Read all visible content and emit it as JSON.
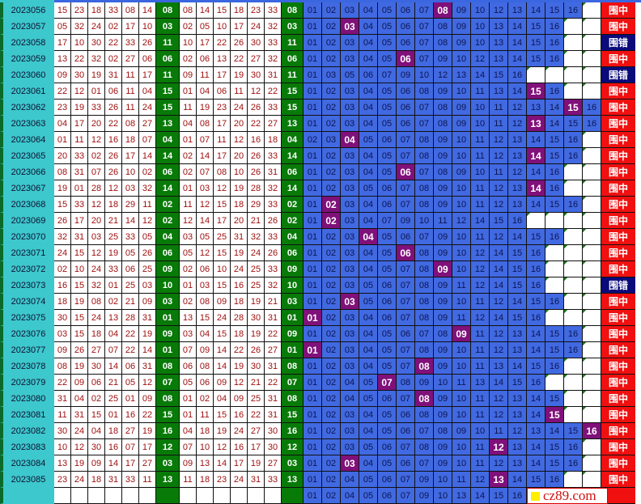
{
  "logo": "cz89.com",
  "colors": {
    "issue_bg": "#3cc8cc",
    "special_bg": "#087a08",
    "pool_bg": "#4169e1",
    "hit_bg": "#80107a",
    "win_bg": "#f01010",
    "lose_bg": "#0a0a7a"
  },
  "rows": [
    {
      "issue": "2023056",
      "draw": [
        "15",
        "23",
        "18",
        "33",
        "08",
        "14"
      ],
      "special": "08",
      "sorted": [
        "08",
        "14",
        "15",
        "18",
        "23",
        "33"
      ],
      "pool": [
        "01",
        "02",
        "03",
        "04",
        "05",
        "06",
        "07",
        "08",
        "09",
        "10",
        "12",
        "13",
        "14",
        "15",
        "16"
      ],
      "hit": "08",
      "result": "围中"
    },
    {
      "issue": "2023057",
      "draw": [
        "05",
        "32",
        "24",
        "02",
        "17",
        "10"
      ],
      "special": "03",
      "sorted": [
        "02",
        "05",
        "10",
        "17",
        "24",
        "32"
      ],
      "pool": [
        "01",
        "02",
        "03",
        "04",
        "05",
        "06",
        "07",
        "08",
        "09",
        "10",
        "13",
        "14",
        "15",
        "16"
      ],
      "hit": "03",
      "result": "围中"
    },
    {
      "issue": "2023058",
      "draw": [
        "17",
        "10",
        "30",
        "22",
        "33",
        "26"
      ],
      "special": "11",
      "sorted": [
        "10",
        "17",
        "22",
        "26",
        "30",
        "33"
      ],
      "pool": [
        "01",
        "02",
        "03",
        "04",
        "05",
        "06",
        "07",
        "08",
        "09",
        "10",
        "13",
        "14",
        "15",
        "16"
      ],
      "hit": "",
      "result": "围错"
    },
    {
      "issue": "2023059",
      "draw": [
        "13",
        "22",
        "32",
        "02",
        "27",
        "06"
      ],
      "special": "06",
      "sorted": [
        "02",
        "06",
        "13",
        "22",
        "27",
        "32"
      ],
      "pool": [
        "01",
        "02",
        "03",
        "04",
        "05",
        "06",
        "07",
        "09",
        "10",
        "12",
        "13",
        "14",
        "15",
        "16"
      ],
      "hit": "06",
      "result": "围中"
    },
    {
      "issue": "2023060",
      "draw": [
        "09",
        "30",
        "19",
        "31",
        "11",
        "17"
      ],
      "special": "11",
      "sorted": [
        "09",
        "11",
        "17",
        "19",
        "30",
        "31"
      ],
      "pool": [
        "01",
        "03",
        "05",
        "06",
        "07",
        "09",
        "10",
        "12",
        "13",
        "14",
        "15",
        "16"
      ],
      "hit": "",
      "result": "围错"
    },
    {
      "issue": "2023061",
      "draw": [
        "22",
        "12",
        "01",
        "06",
        "11",
        "04"
      ],
      "special": "15",
      "sorted": [
        "01",
        "04",
        "06",
        "11",
        "12",
        "22"
      ],
      "pool": [
        "01",
        "02",
        "03",
        "04",
        "05",
        "06",
        "08",
        "09",
        "10",
        "11",
        "13",
        "14",
        "15",
        "16"
      ],
      "hit": "15",
      "result": "围中"
    },
    {
      "issue": "2023062",
      "draw": [
        "23",
        "19",
        "33",
        "26",
        "11",
        "24"
      ],
      "special": "15",
      "sorted": [
        "11",
        "19",
        "23",
        "24",
        "26",
        "33"
      ],
      "pool": [
        "01",
        "02",
        "03",
        "04",
        "05",
        "06",
        "07",
        "08",
        "09",
        "10",
        "11",
        "12",
        "13",
        "14",
        "15",
        "16"
      ],
      "hit": "15",
      "result": "围中"
    },
    {
      "issue": "2023063",
      "draw": [
        "04",
        "17",
        "20",
        "22",
        "08",
        "27"
      ],
      "special": "13",
      "sorted": [
        "04",
        "08",
        "17",
        "20",
        "22",
        "27"
      ],
      "pool": [
        "01",
        "02",
        "03",
        "04",
        "05",
        "06",
        "07",
        "08",
        "09",
        "10",
        "11",
        "12",
        "13",
        "14",
        "15",
        "16"
      ],
      "hit": "13",
      "result": "围中"
    },
    {
      "issue": "2023064",
      "draw": [
        "01",
        "11",
        "12",
        "16",
        "18",
        "07"
      ],
      "special": "04",
      "sorted": [
        "01",
        "07",
        "11",
        "12",
        "16",
        "18"
      ],
      "pool": [
        "02",
        "03",
        "04",
        "05",
        "06",
        "07",
        "08",
        "09",
        "10",
        "11",
        "12",
        "13",
        "14",
        "15",
        "16"
      ],
      "hit": "04",
      "result": "围中"
    },
    {
      "issue": "2023065",
      "draw": [
        "20",
        "33",
        "02",
        "26",
        "17",
        "14"
      ],
      "special": "14",
      "sorted": [
        "02",
        "14",
        "17",
        "20",
        "26",
        "33"
      ],
      "pool": [
        "01",
        "02",
        "03",
        "04",
        "05",
        "07",
        "08",
        "09",
        "10",
        "11",
        "12",
        "13",
        "14",
        "15",
        "16"
      ],
      "hit": "14",
      "result": "围中"
    },
    {
      "issue": "2023066",
      "draw": [
        "08",
        "31",
        "07",
        "26",
        "10",
        "02"
      ],
      "special": "06",
      "sorted": [
        "02",
        "07",
        "08",
        "10",
        "26",
        "31"
      ],
      "pool": [
        "01",
        "02",
        "03",
        "04",
        "05",
        "06",
        "07",
        "08",
        "09",
        "10",
        "11",
        "12",
        "14",
        "16"
      ],
      "hit": "06",
      "result": "围中"
    },
    {
      "issue": "2023067",
      "draw": [
        "19",
        "01",
        "28",
        "12",
        "03",
        "32"
      ],
      "special": "14",
      "sorted": [
        "01",
        "03",
        "12",
        "19",
        "28",
        "32"
      ],
      "pool": [
        "01",
        "02",
        "03",
        "05",
        "06",
        "07",
        "08",
        "09",
        "10",
        "11",
        "12",
        "13",
        "14",
        "16"
      ],
      "hit": "14",
      "result": "围中"
    },
    {
      "issue": "2023068",
      "draw": [
        "15",
        "33",
        "12",
        "18",
        "29",
        "11"
      ],
      "special": "02",
      "sorted": [
        "11",
        "12",
        "15",
        "18",
        "29",
        "33"
      ],
      "pool": [
        "01",
        "02",
        "03",
        "04",
        "06",
        "07",
        "08",
        "09",
        "10",
        "11",
        "12",
        "13",
        "14",
        "15",
        "16"
      ],
      "hit": "02",
      "result": "围中"
    },
    {
      "issue": "2023069",
      "draw": [
        "26",
        "17",
        "20",
        "21",
        "14",
        "12"
      ],
      "special": "02",
      "sorted": [
        "12",
        "14",
        "17",
        "20",
        "21",
        "26"
      ],
      "pool": [
        "01",
        "02",
        "03",
        "04",
        "07",
        "09",
        "10",
        "11",
        "12",
        "14",
        "15",
        "16"
      ],
      "hit": "02",
      "result": "围中"
    },
    {
      "issue": "2023070",
      "draw": [
        "32",
        "31",
        "03",
        "25",
        "33",
        "05"
      ],
      "special": "04",
      "sorted": [
        "03",
        "05",
        "25",
        "31",
        "32",
        "33"
      ],
      "pool": [
        "01",
        "02",
        "03",
        "04",
        "05",
        "06",
        "07",
        "09",
        "10",
        "11",
        "12",
        "14",
        "15",
        "16"
      ],
      "hit": "04",
      "result": "围中"
    },
    {
      "issue": "2023071",
      "draw": [
        "24",
        "15",
        "12",
        "19",
        "05",
        "26"
      ],
      "special": "06",
      "sorted": [
        "05",
        "12",
        "15",
        "19",
        "24",
        "26"
      ],
      "pool": [
        "01",
        "02",
        "03",
        "04",
        "05",
        "06",
        "08",
        "09",
        "10",
        "12",
        "14",
        "15",
        "16"
      ],
      "hit": "06",
      "result": "围中"
    },
    {
      "issue": "2023072",
      "draw": [
        "02",
        "10",
        "24",
        "33",
        "06",
        "25"
      ],
      "special": "09",
      "sorted": [
        "02",
        "06",
        "10",
        "24",
        "25",
        "33"
      ],
      "pool": [
        "01",
        "02",
        "03",
        "04",
        "05",
        "07",
        "08",
        "09",
        "10",
        "12",
        "14",
        "15",
        "16"
      ],
      "hit": "09",
      "result": "围中"
    },
    {
      "issue": "2023073",
      "draw": [
        "16",
        "15",
        "32",
        "01",
        "25",
        "03"
      ],
      "special": "10",
      "sorted": [
        "01",
        "03",
        "15",
        "16",
        "25",
        "32"
      ],
      "pool": [
        "01",
        "02",
        "03",
        "05",
        "06",
        "07",
        "08",
        "09",
        "11",
        "12",
        "14",
        "15",
        "16"
      ],
      "hit": "",
      "result": "围错"
    },
    {
      "issue": "2023074",
      "draw": [
        "18",
        "19",
        "08",
        "02",
        "21",
        "09"
      ],
      "special": "03",
      "sorted": [
        "02",
        "08",
        "09",
        "18",
        "19",
        "21"
      ],
      "pool": [
        "01",
        "02",
        "03",
        "05",
        "06",
        "07",
        "08",
        "09",
        "10",
        "11",
        "12",
        "14",
        "15",
        "16"
      ],
      "hit": "03",
      "result": "围中"
    },
    {
      "issue": "2023075",
      "draw": [
        "30",
        "15",
        "24",
        "13",
        "28",
        "31"
      ],
      "special": "01",
      "sorted": [
        "13",
        "15",
        "24",
        "28",
        "30",
        "31"
      ],
      "pool": [
        "01",
        "02",
        "03",
        "04",
        "06",
        "07",
        "08",
        "09",
        "11",
        "12",
        "14",
        "15",
        "16"
      ],
      "hit": "01",
      "result": "围中"
    },
    {
      "issue": "2023076",
      "draw": [
        "03",
        "15",
        "18",
        "04",
        "22",
        "19"
      ],
      "special": "09",
      "sorted": [
        "03",
        "04",
        "15",
        "18",
        "19",
        "22"
      ],
      "pool": [
        "01",
        "02",
        "03",
        "04",
        "05",
        "06",
        "07",
        "08",
        "09",
        "11",
        "12",
        "13",
        "14",
        "15",
        "16"
      ],
      "hit": "09",
      "result": "围中"
    },
    {
      "issue": "2023077",
      "draw": [
        "09",
        "26",
        "27",
        "07",
        "22",
        "14"
      ],
      "special": "01",
      "sorted": [
        "07",
        "09",
        "14",
        "22",
        "26",
        "27"
      ],
      "pool": [
        "01",
        "02",
        "03",
        "04",
        "05",
        "07",
        "08",
        "09",
        "10",
        "11",
        "12",
        "13",
        "14",
        "15",
        "16"
      ],
      "hit": "01",
      "result": "围中"
    },
    {
      "issue": "2023078",
      "draw": [
        "08",
        "19",
        "30",
        "14",
        "06",
        "31"
      ],
      "special": "08",
      "sorted": [
        "06",
        "08",
        "14",
        "19",
        "30",
        "31"
      ],
      "pool": [
        "01",
        "02",
        "03",
        "04",
        "05",
        "07",
        "08",
        "09",
        "10",
        "11",
        "13",
        "14",
        "15",
        "16"
      ],
      "hit": "08",
      "result": "围中"
    },
    {
      "issue": "2023079",
      "draw": [
        "22",
        "09",
        "06",
        "21",
        "05",
        "12"
      ],
      "special": "07",
      "sorted": [
        "05",
        "06",
        "09",
        "12",
        "21",
        "22"
      ],
      "pool": [
        "01",
        "02",
        "04",
        "05",
        "07",
        "08",
        "09",
        "10",
        "11",
        "13",
        "14",
        "15",
        "16"
      ],
      "hit": "07",
      "result": "围中"
    },
    {
      "issue": "2023080",
      "draw": [
        "31",
        "04",
        "02",
        "25",
        "01",
        "09"
      ],
      "special": "08",
      "sorted": [
        "01",
        "02",
        "04",
        "09",
        "25",
        "31"
      ],
      "pool": [
        "01",
        "02",
        "04",
        "05",
        "06",
        "07",
        "08",
        "09",
        "10",
        "11",
        "12",
        "13",
        "14",
        "15"
      ],
      "hit": "08",
      "result": "围中"
    },
    {
      "issue": "2023081",
      "draw": [
        "11",
        "31",
        "15",
        "01",
        "16",
        "22"
      ],
      "special": "15",
      "sorted": [
        "01",
        "11",
        "15",
        "16",
        "22",
        "31"
      ],
      "pool": [
        "01",
        "02",
        "03",
        "04",
        "05",
        "06",
        "08",
        "09",
        "10",
        "11",
        "12",
        "13",
        "14",
        "15"
      ],
      "hit": "15",
      "result": "围中"
    },
    {
      "issue": "2023082",
      "draw": [
        "30",
        "24",
        "04",
        "18",
        "27",
        "19"
      ],
      "special": "16",
      "sorted": [
        "04",
        "18",
        "19",
        "24",
        "27",
        "30"
      ],
      "pool": [
        "01",
        "02",
        "03",
        "04",
        "05",
        "06",
        "07",
        "08",
        "09",
        "10",
        "11",
        "12",
        "13",
        "14",
        "15",
        "16"
      ],
      "hit": "16",
      "result": "围中"
    },
    {
      "issue": "2023083",
      "draw": [
        "10",
        "12",
        "30",
        "16",
        "07",
        "17"
      ],
      "special": "12",
      "sorted": [
        "07",
        "10",
        "12",
        "16",
        "17",
        "30"
      ],
      "pool": [
        "01",
        "02",
        "03",
        "05",
        "06",
        "07",
        "08",
        "09",
        "10",
        "11",
        "12",
        "13",
        "14",
        "15",
        "16"
      ],
      "hit": "12",
      "result": "围中"
    },
    {
      "issue": "2023084",
      "draw": [
        "13",
        "19",
        "09",
        "14",
        "17",
        "27"
      ],
      "special": "03",
      "sorted": [
        "09",
        "13",
        "14",
        "17",
        "19",
        "27"
      ],
      "pool": [
        "01",
        "02",
        "03",
        "04",
        "05",
        "06",
        "07",
        "09",
        "10",
        "11",
        "12",
        "13",
        "14",
        "15",
        "16"
      ],
      "hit": "03",
      "result": "围中"
    },
    {
      "issue": "2023085",
      "draw": [
        "23",
        "24",
        "18",
        "31",
        "33",
        "11"
      ],
      "special": "13",
      "sorted": [
        "11",
        "18",
        "23",
        "24",
        "31",
        "33"
      ],
      "pool": [
        "01",
        "02",
        "04",
        "05",
        "06",
        "07",
        "09",
        "10",
        "11",
        "12",
        "13",
        "14",
        "15",
        "16"
      ],
      "hit": "13",
      "result": "围中"
    },
    {
      "issue": "",
      "draw": [
        "",
        "",
        "",
        "",
        "",
        ""
      ],
      "special": "",
      "sorted": [
        "",
        "",
        "",
        "",
        "",
        ""
      ],
      "pool": [
        "01",
        "02",
        "04",
        "05",
        "06",
        "07",
        "09",
        "10",
        "13",
        "14",
        "15",
        "16"
      ],
      "hit": "",
      "result": ""
    }
  ]
}
